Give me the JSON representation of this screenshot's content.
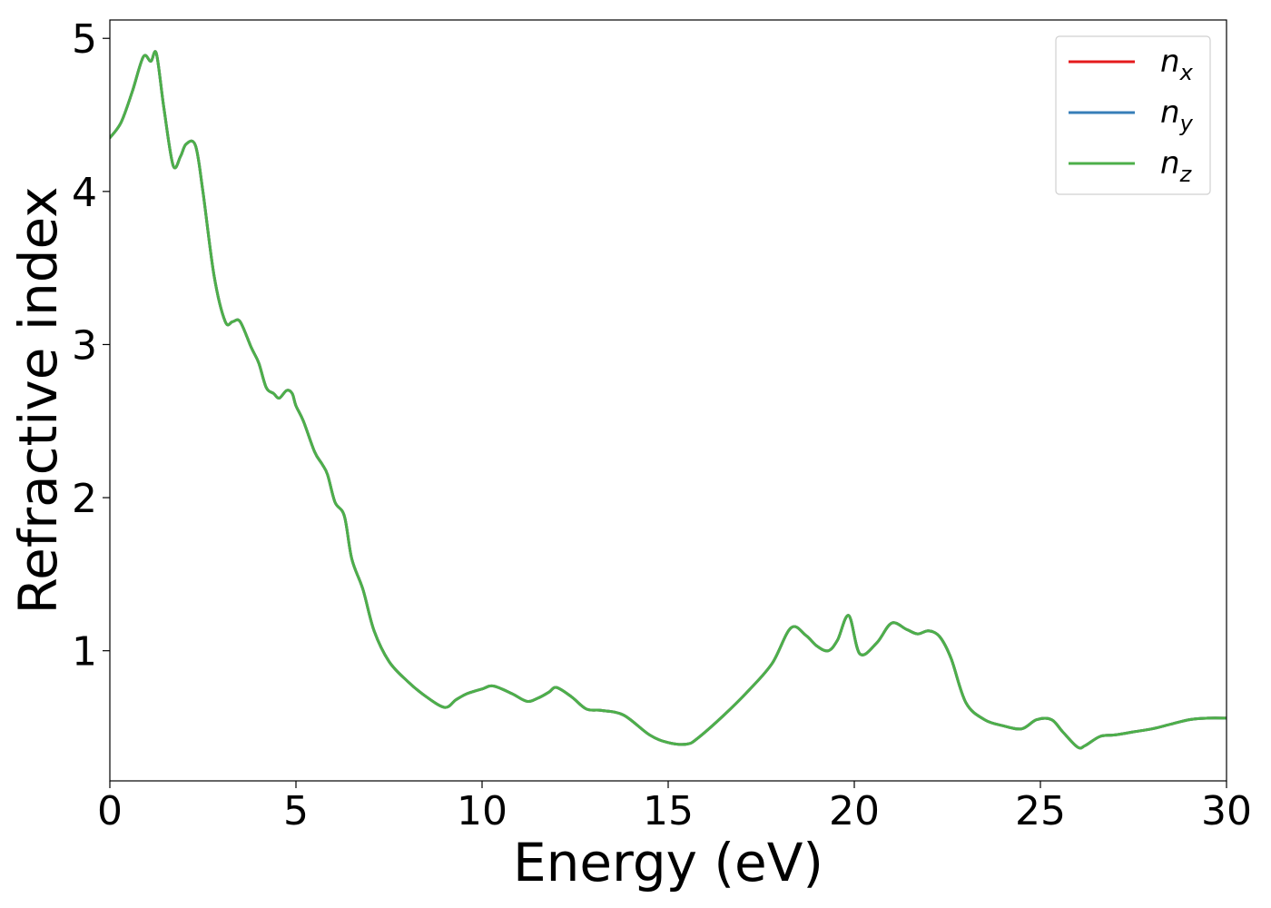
{
  "chart_data": {
    "type": "line",
    "xlabel": "Energy (eV)",
    "ylabel": "Refractive index",
    "xlim": [
      0,
      30
    ],
    "ylim": [
      0.15,
      5.12
    ],
    "xticks": [
      0,
      5,
      10,
      15,
      20,
      25,
      30
    ],
    "yticks": [
      1,
      2,
      3,
      4,
      5
    ],
    "grid": false,
    "legend_position": "top-right",
    "series": [
      {
        "name": "n_x",
        "base": "n",
        "sub": "x",
        "color": "#e41a1c",
        "x": [
          0,
          0.3,
          0.6,
          0.9,
          1.1,
          1.25,
          1.45,
          1.7,
          1.9,
          2.05,
          2.3,
          2.5,
          2.8,
          3.1,
          3.3,
          3.5,
          3.8,
          4.0,
          4.2,
          4.4,
          4.55,
          4.75,
          4.9,
          5.0,
          5.2,
          5.5,
          5.7,
          5.85,
          6.05,
          6.3,
          6.5,
          6.8,
          7.1,
          7.5,
          8.0,
          8.5,
          9.0,
          9.3,
          9.6,
          10.0,
          10.3,
          10.8,
          11.2,
          11.5,
          11.8,
          12.0,
          12.4,
          12.8,
          13.2,
          13.8,
          14.5,
          15.0,
          15.5,
          15.8,
          16.5,
          17.2,
          17.8,
          18.3,
          18.7,
          19.0,
          19.3,
          19.55,
          19.85,
          20.15,
          20.6,
          21.0,
          21.4,
          21.7,
          22.0,
          22.3,
          22.6,
          23.0,
          23.5,
          24.0,
          24.5,
          24.9,
          25.3,
          25.6,
          26.0,
          26.2,
          26.6,
          27.0,
          27.5,
          28.0,
          28.5,
          29.0,
          29.5,
          30.0
        ],
        "y": [
          4.35,
          4.45,
          4.65,
          4.88,
          4.85,
          4.9,
          4.55,
          4.17,
          4.23,
          4.31,
          4.3,
          4.0,
          3.45,
          3.15,
          3.15,
          3.15,
          2.98,
          2.88,
          2.72,
          2.68,
          2.65,
          2.7,
          2.68,
          2.6,
          2.5,
          2.3,
          2.22,
          2.15,
          1.97,
          1.88,
          1.6,
          1.4,
          1.13,
          0.93,
          0.8,
          0.7,
          0.63,
          0.68,
          0.72,
          0.75,
          0.77,
          0.72,
          0.67,
          0.69,
          0.73,
          0.76,
          0.7,
          0.62,
          0.61,
          0.58,
          0.45,
          0.4,
          0.39,
          0.43,
          0.58,
          0.75,
          0.92,
          1.15,
          1.1,
          1.03,
          1.0,
          1.07,
          1.23,
          0.98,
          1.05,
          1.18,
          1.14,
          1.11,
          1.13,
          1.09,
          0.95,
          0.66,
          0.55,
          0.51,
          0.49,
          0.55,
          0.55,
          0.47,
          0.37,
          0.38,
          0.44,
          0.45,
          0.47,
          0.49,
          0.52,
          0.55,
          0.56,
          0.56
        ]
      },
      {
        "name": "n_y",
        "base": "n",
        "sub": "y",
        "color": "#377eb8",
        "x": [
          0,
          0.3,
          0.6,
          0.9,
          1.1,
          1.25,
          1.45,
          1.7,
          1.9,
          2.05,
          2.3,
          2.5,
          2.8,
          3.1,
          3.3,
          3.5,
          3.8,
          4.0,
          4.2,
          4.4,
          4.55,
          4.75,
          4.9,
          5.0,
          5.2,
          5.5,
          5.7,
          5.85,
          6.05,
          6.3,
          6.5,
          6.8,
          7.1,
          7.5,
          8.0,
          8.5,
          9.0,
          9.3,
          9.6,
          10.0,
          10.3,
          10.8,
          11.2,
          11.5,
          11.8,
          12.0,
          12.4,
          12.8,
          13.2,
          13.8,
          14.5,
          15.0,
          15.5,
          15.8,
          16.5,
          17.2,
          17.8,
          18.3,
          18.7,
          19.0,
          19.3,
          19.55,
          19.85,
          20.15,
          20.6,
          21.0,
          21.4,
          21.7,
          22.0,
          22.3,
          22.6,
          23.0,
          23.5,
          24.0,
          24.5,
          24.9,
          25.3,
          25.6,
          26.0,
          26.2,
          26.6,
          27.0,
          27.5,
          28.0,
          28.5,
          29.0,
          29.5,
          30.0
        ],
        "y": [
          4.35,
          4.45,
          4.65,
          4.88,
          4.85,
          4.9,
          4.55,
          4.17,
          4.23,
          4.31,
          4.3,
          4.0,
          3.45,
          3.15,
          3.15,
          3.15,
          2.98,
          2.88,
          2.72,
          2.68,
          2.65,
          2.7,
          2.68,
          2.6,
          2.5,
          2.3,
          2.22,
          2.15,
          1.97,
          1.88,
          1.6,
          1.4,
          1.13,
          0.93,
          0.8,
          0.7,
          0.63,
          0.68,
          0.72,
          0.75,
          0.77,
          0.72,
          0.67,
          0.69,
          0.73,
          0.76,
          0.7,
          0.62,
          0.61,
          0.58,
          0.45,
          0.4,
          0.39,
          0.43,
          0.58,
          0.75,
          0.92,
          1.15,
          1.1,
          1.03,
          1.0,
          1.07,
          1.23,
          0.98,
          1.05,
          1.18,
          1.14,
          1.11,
          1.13,
          1.09,
          0.95,
          0.66,
          0.55,
          0.51,
          0.49,
          0.55,
          0.55,
          0.47,
          0.37,
          0.38,
          0.44,
          0.45,
          0.47,
          0.49,
          0.52,
          0.55,
          0.56,
          0.56
        ]
      },
      {
        "name": "n_z",
        "base": "n",
        "sub": "z",
        "color": "#4daf4a",
        "x": [
          0,
          0.3,
          0.6,
          0.9,
          1.1,
          1.25,
          1.45,
          1.7,
          1.9,
          2.05,
          2.3,
          2.5,
          2.8,
          3.1,
          3.3,
          3.5,
          3.8,
          4.0,
          4.2,
          4.4,
          4.55,
          4.75,
          4.9,
          5.0,
          5.2,
          5.5,
          5.7,
          5.85,
          6.05,
          6.3,
          6.5,
          6.8,
          7.1,
          7.5,
          8.0,
          8.5,
          9.0,
          9.3,
          9.6,
          10.0,
          10.3,
          10.8,
          11.2,
          11.5,
          11.8,
          12.0,
          12.4,
          12.8,
          13.2,
          13.8,
          14.5,
          15.0,
          15.5,
          15.8,
          16.5,
          17.2,
          17.8,
          18.3,
          18.7,
          19.0,
          19.3,
          19.55,
          19.85,
          20.15,
          20.6,
          21.0,
          21.4,
          21.7,
          22.0,
          22.3,
          22.6,
          23.0,
          23.5,
          24.0,
          24.5,
          24.9,
          25.3,
          25.6,
          26.0,
          26.2,
          26.6,
          27.0,
          27.5,
          28.0,
          28.5,
          29.0,
          29.5,
          30.0
        ],
        "y": [
          4.35,
          4.45,
          4.65,
          4.88,
          4.85,
          4.9,
          4.55,
          4.17,
          4.23,
          4.31,
          4.3,
          4.0,
          3.45,
          3.15,
          3.15,
          3.15,
          2.98,
          2.88,
          2.72,
          2.68,
          2.65,
          2.7,
          2.68,
          2.6,
          2.5,
          2.3,
          2.22,
          2.15,
          1.97,
          1.88,
          1.6,
          1.4,
          1.13,
          0.93,
          0.8,
          0.7,
          0.63,
          0.68,
          0.72,
          0.75,
          0.77,
          0.72,
          0.67,
          0.69,
          0.73,
          0.76,
          0.7,
          0.62,
          0.61,
          0.58,
          0.45,
          0.4,
          0.39,
          0.43,
          0.58,
          0.75,
          0.92,
          1.15,
          1.1,
          1.03,
          1.0,
          1.07,
          1.23,
          0.98,
          1.05,
          1.18,
          1.14,
          1.11,
          1.13,
          1.09,
          0.95,
          0.66,
          0.55,
          0.51,
          0.49,
          0.55,
          0.55,
          0.47,
          0.37,
          0.38,
          0.44,
          0.45,
          0.47,
          0.49,
          0.52,
          0.55,
          0.56,
          0.56
        ]
      }
    ]
  }
}
